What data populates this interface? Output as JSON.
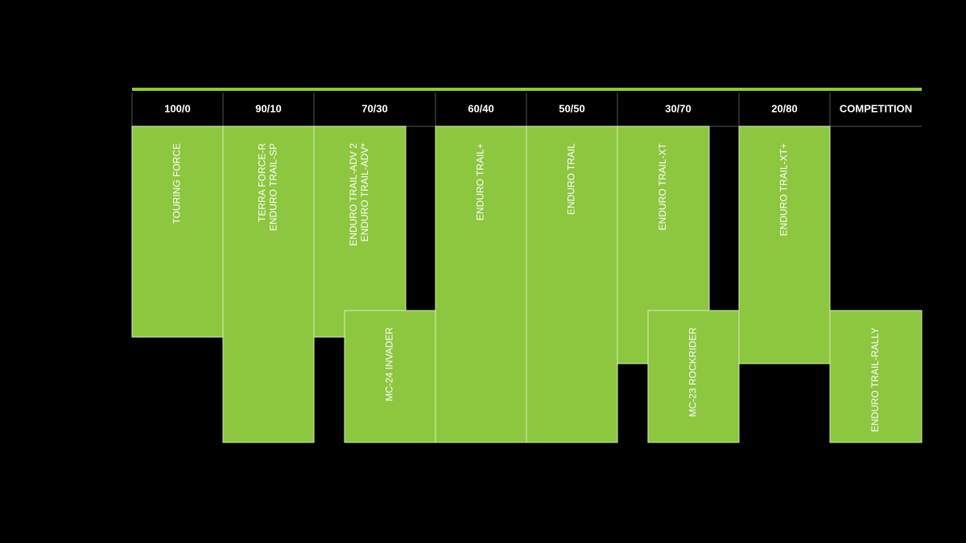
{
  "columns": [
    "100/0",
    "90/10",
    "70/30",
    "60/40",
    "50/50",
    "30/70",
    "20/80",
    "COMPETITION"
  ],
  "blocks": [
    {
      "lines": [
        "TOURING FORCE"
      ]
    },
    {
      "lines": [
        "TERRA FORCE-R",
        "ENDURO TRAIL-SP"
      ]
    },
    {
      "lines": [
        "ENDURO TRAIL-ADV 2",
        "ENDURO TRAIL-ADV*"
      ]
    },
    {
      "lines": [
        "MC-24 INVADER"
      ]
    },
    {
      "lines": [
        "ENDURO TRAIL+"
      ]
    },
    {
      "lines": [
        "ENDURO TRAIL"
      ]
    },
    {
      "lines": [
        "ENDURO TRAIL-XT"
      ]
    },
    {
      "lines": [
        "MC-23 ROCKRIDER"
      ]
    },
    {
      "lines": [
        "ENDURO TRAIL-XT+"
      ]
    },
    {
      "lines": [
        "ENDURO TRAIL-RALLY"
      ]
    }
  ]
}
